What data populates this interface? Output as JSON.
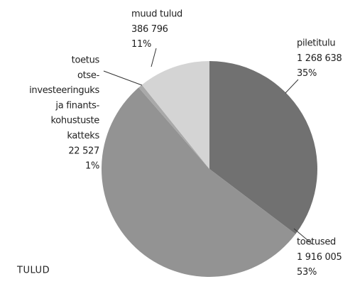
{
  "chart_data": {
    "type": "pie",
    "title": "TULUD",
    "categories": [
      "piletitulu",
      "toetused",
      [
        "toetus",
        "otse-",
        "investeeringuks",
        "ja finants-",
        "kohustuste",
        "katteks"
      ],
      "muud tulud"
    ],
    "values": [
      1268638,
      1916005,
      22527,
      386796
    ],
    "value_labels": [
      "1 268 638",
      "1 916 005",
      "22 527",
      "386 796"
    ],
    "percents": [
      35,
      53,
      1,
      11
    ],
    "percent_labels": [
      "35%",
      "53%",
      "1%",
      "11%"
    ],
    "colors": [
      "#717171",
      "#939393",
      "#a9a9a9",
      "#d4d4d4"
    ]
  }
}
